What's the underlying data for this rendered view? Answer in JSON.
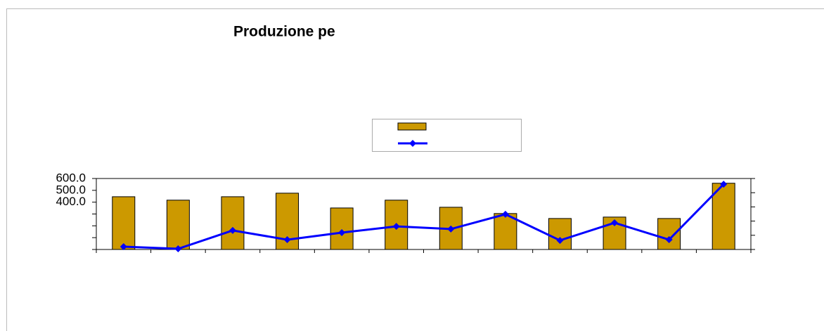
{
  "chart_data": {
    "type": "bar_line",
    "title": "Produzione pe",
    "categories": [
      null,
      null,
      null,
      null,
      null,
      null,
      null,
      null,
      null,
      null,
      null,
      null
    ],
    "series": [
      {
        "type": "bar",
        "color": "#cc9900",
        "values": [
          446,
          417,
          446,
          476,
          351,
          417,
          357,
          304,
          262,
          274,
          262,
          560
        ]
      },
      {
        "type": "line",
        "color": "#0000ff",
        "axis": "y2",
        "values": [
          0.2,
          0.05,
          1.34,
          0.69,
          1.19,
          1.63,
          1.44,
          2.48,
          0.64,
          1.88,
          0.69,
          4.6
        ]
      }
    ],
    "ylim": [
      0,
      600
    ],
    "yticks": [
      {
        "value": 0,
        "label": null
      },
      {
        "value": 100,
        "label": null
      },
      {
        "value": 200,
        "label": null
      },
      {
        "value": 300,
        "label": null
      },
      {
        "value": 400,
        "label": "400.0"
      },
      {
        "value": 500,
        "label": "500.0"
      },
      {
        "value": 600,
        "label": "600.0"
      }
    ],
    "y2lim": [
      0,
      5
    ],
    "y2ticks": [
      {
        "value": 0,
        "label": null
      },
      {
        "value": 1,
        "label": null
      },
      {
        "value": 2,
        "label": null
      },
      {
        "value": 3,
        "label": null
      },
      {
        "value": 4,
        "label": null
      },
      {
        "value": 5,
        "label": null
      }
    ],
    "legend": "top-center"
  }
}
